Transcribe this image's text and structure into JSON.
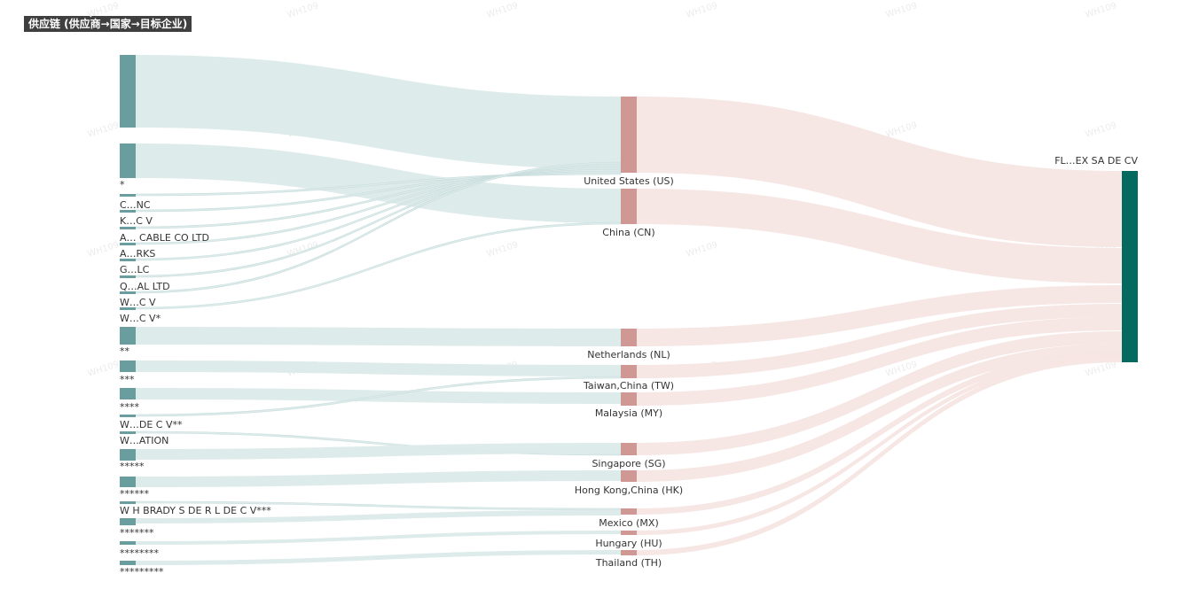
{
  "title": "供应链 (供应商→国家→目标企业)",
  "watermark": "WH109",
  "colors": {
    "supplier_node": "#6a9e9e",
    "supplier_link": "#dceaea",
    "country_node": "#cf9894",
    "country_link": "#f5e5e3",
    "target_node": "#04695f"
  },
  "chart_data": {
    "type": "sankey",
    "suppliers": [
      {
        "label": ""
      },
      {
        "label": "*"
      },
      {
        "label": "C…NC"
      },
      {
        "label": "K…C V"
      },
      {
        "label": "A… CABLE CO LTD"
      },
      {
        "label": "A…RKS"
      },
      {
        "label": "G…LC"
      },
      {
        "label": "Q…AL LTD"
      },
      {
        "label": "W…C V"
      },
      {
        "label": "W…C V*"
      },
      {
        "label": "**"
      },
      {
        "label": "***"
      },
      {
        "label": "****"
      },
      {
        "label": "W…DE C V**"
      },
      {
        "label": "W…ATION"
      },
      {
        "label": "*****"
      },
      {
        "label": "******"
      },
      {
        "label": "W H BRADY S DE R L DE C V***"
      },
      {
        "label": "*******"
      },
      {
        "label": "********"
      },
      {
        "label": "*********"
      }
    ],
    "countries": [
      {
        "label": "United States (US)"
      },
      {
        "label": "China (CN)"
      },
      {
        "label": "Netherlands (NL)"
      },
      {
        "label": "Taiwan,China (TW)"
      },
      {
        "label": "Malaysia (MY)"
      },
      {
        "label": "Singapore (SG)"
      },
      {
        "label": "Hong Kong,China (HK)"
      },
      {
        "label": "Mexico (MX)"
      },
      {
        "label": "Hungary (HU)"
      },
      {
        "label": "Thailand (TH)"
      }
    ],
    "target": {
      "label": "FL…EX SA DE CV"
    }
  }
}
